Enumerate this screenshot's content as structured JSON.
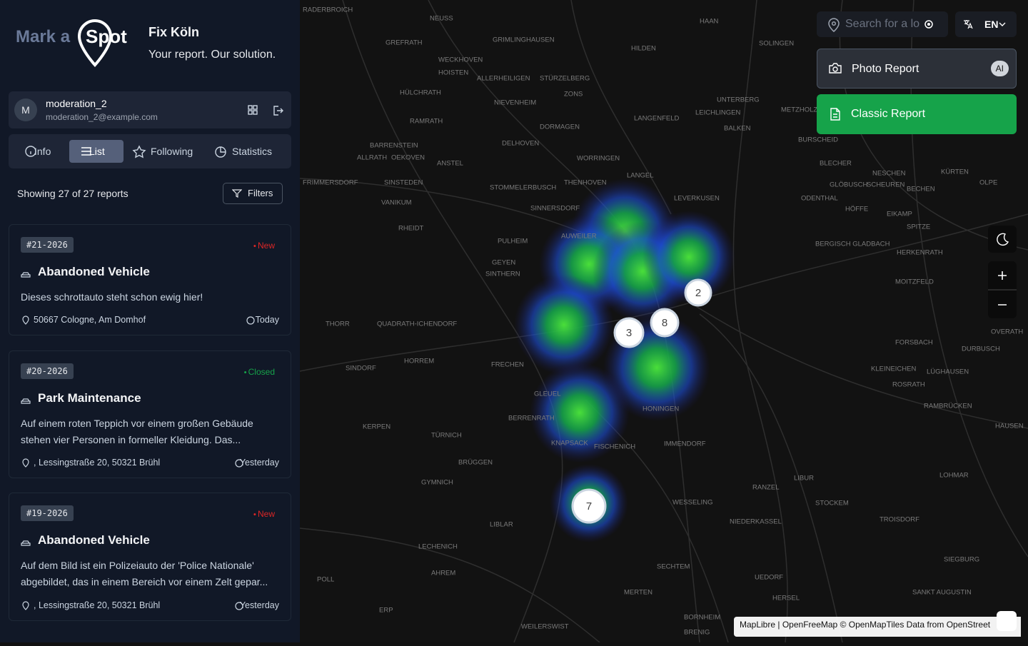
{
  "brand": {
    "logo_part_1": "Mark a",
    "logo_part_2": "Spot",
    "title": "Fix Köln",
    "tagline": "Your report. Our solution."
  },
  "user": {
    "avatar": "M",
    "name": "moderation_2",
    "email": "moderation_2@example.com"
  },
  "tabs": [
    "Info",
    "List",
    "Following",
    "Statistics"
  ],
  "list": {
    "summary": "Showing 27 of 27 reports",
    "filters_button": "Filters",
    "reports": [
      {
        "id": "#21-2026",
        "status": "New",
        "status_color": "#dc2626",
        "title": "Abandoned Vehicle",
        "description": "Dieses schrottauto steht schon ewig hier!",
        "location": "50667 Cologne, Am Domhof",
        "date": "Today"
      },
      {
        "id": "#20-2026",
        "status": "Closed",
        "status_color": "#16a34a",
        "title": "Park Maintenance",
        "description": "Auf einem roten Teppich vor einem großen Gebäude stehen vier Personen in formeller Kleidung. Das...",
        "location": ", Lessingstraße 20, 50321 Brühl",
        "date": "Yesterday"
      },
      {
        "id": "#19-2026",
        "status": "New",
        "status_color": "#dc2626",
        "title": "Abandoned Vehicle",
        "description": "Auf dem Bild ist ein Polizeiauto der 'Police Nationale' abgebildet, das in einem Bereich vor einem Zelt gepar...",
        "location": ", Lessingstraße 20, 50321 Brühl",
        "date": "Yesterday"
      }
    ]
  },
  "map": {
    "search_placeholder": "Search for a lo",
    "language": "EN",
    "photo_report": "Photo Report",
    "ai_badge": "AI",
    "classic_report": "Classic Report",
    "clusters": [
      "2",
      "8",
      "3",
      "7"
    ],
    "attribution": [
      "MapLibre",
      "|",
      "OpenFreeMap",
      "© OpenMapTiles",
      "Data from",
      "OpenStreet"
    ],
    "place_labels": [
      "RADERBROICH",
      "NEUSS",
      "GREFRATH",
      "GRIMLINGHAUSEN",
      "HILDEN",
      "HAAN",
      "SOLINGEN",
      "WECKHOVEN",
      "HOISTEN",
      "ALLERHEILIGEN",
      "STÜRZELBERG",
      "ZONS",
      "UNTERBERG",
      "HÜLCHRATH",
      "RAMRATH",
      "NIEVENHEIM",
      "LANGENFELD",
      "LEICHLINGEN",
      "BURSCHEID",
      "DORMAGEN",
      "DELHOVEN",
      "BARRENSTEIN",
      "ALLRATH",
      "OEKOVEN",
      "ANSTEL",
      "WORRINGEN",
      "LANGEL",
      "LEVERKUSEN",
      "STOMMELERBUSCH",
      "THENHOVEN",
      "SINNERSDORF",
      "FRIMMERSDORF",
      "SINSTEDEN",
      "VANIKUM",
      "RHEIDT",
      "PULHEIM",
      "GEYEN",
      "SINTHERN",
      "AUWEILER",
      "BERGISCH GLADBACH",
      "HERKENRATH",
      "MOITZFELD",
      "THORR",
      "QUADRATH-ICHENDORF",
      "FRECHEN",
      "HORREM",
      "SINDORF",
      "KERPEN",
      "TÜRNICH",
      "GLEUEL",
      "BERRENRATH",
      "KNAPSACK",
      "FISCHENICH",
      "IMMENDORF",
      "HONINGEN",
      "BRÜGGEN",
      "GYMNICH",
      "LIBLAR",
      "WESSELING",
      "NIEDERKASSEL",
      "RANZEL",
      "LIBUR",
      "STOCKEM",
      "TROISDORF",
      "SIEGBURG",
      "SANKT AUGUSTIN",
      "HERSEL",
      "UEDORF",
      "SECHTEM",
      "MERTEN",
      "BORNHEIM",
      "BRENIG",
      "WEILERSWIST",
      "ERP",
      "POLL",
      "LECHENICH",
      "AHREM",
      "KLEINEICHEN",
      "ROSRATH",
      "LÜGHAUSEN",
      "FORSBACH",
      "DURBUSCH",
      "RAMBRÜCKEN",
      "HAUSEN",
      "LOHMAR",
      "OVERATH",
      "SPITZE",
      "EIKAMP",
      "HÖFFE",
      "BECHEN",
      "OLPE",
      "KÜRTEN",
      "NESCHEN",
      "SCHEUREN",
      "GLÖBUSCH",
      "ODENTHAL",
      "BLECHER",
      "METZHOLZ",
      "BALKEN"
    ]
  }
}
